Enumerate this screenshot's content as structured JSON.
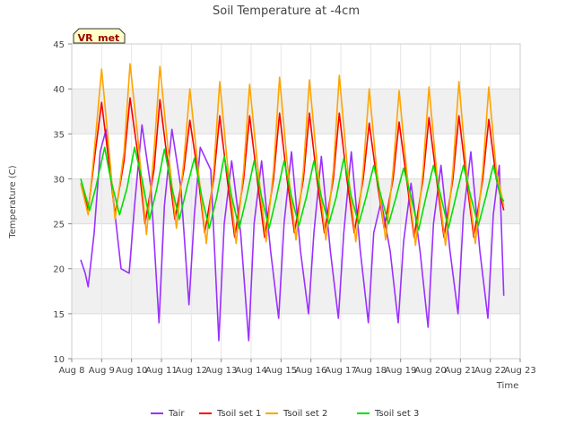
{
  "chart_data": {
    "type": "line",
    "title": "Soil Temperature at -4cm",
    "xlabel": "Time",
    "ylabel": "Temperature (C)",
    "station_label": "VR_met",
    "ylim": [
      10,
      45
    ],
    "yticks": [
      10,
      15,
      20,
      25,
      30,
      35,
      40,
      45
    ],
    "xlim_days": [
      8,
      23
    ],
    "xtick_labels": [
      "Aug 8",
      "Aug 9",
      "Aug 10",
      "Aug 11",
      "Aug 12",
      "Aug 13",
      "Aug 14",
      "Aug 15",
      "Aug 16",
      "Aug 17",
      "Aug 18",
      "Aug 19",
      "Aug 20",
      "Aug 21",
      "Aug 22",
      "Aug 23"
    ],
    "grid": true,
    "legend_position": "bottom",
    "series": [
      {
        "name": "Tair",
        "color": "#9b30ff",
        "x": [
          8.3,
          8.45,
          8.55,
          8.75,
          8.95,
          9.15,
          9.35,
          9.65,
          9.92,
          10.1,
          10.35,
          10.65,
          10.92,
          11.1,
          11.35,
          11.65,
          11.92,
          12.1,
          12.3,
          12.65,
          12.92,
          13.1,
          13.35,
          13.65,
          13.92,
          14.1,
          14.35,
          14.65,
          14.92,
          15.1,
          15.35,
          15.65,
          15.92,
          16.1,
          16.35,
          16.65,
          16.92,
          17.1,
          17.35,
          17.65,
          17.92,
          18.1,
          18.35,
          18.65,
          18.92,
          19.1,
          19.35,
          19.65,
          19.92,
          20.1,
          20.35,
          20.65,
          20.92,
          21.1,
          21.35,
          21.65,
          21.92,
          22.1,
          22.3,
          22.45
        ],
        "y": [
          21,
          19.5,
          18,
          24,
          33,
          35.5,
          29,
          20,
          19.5,
          27,
          36,
          29,
          14,
          27,
          35.5,
          29,
          16,
          26,
          33.5,
          31,
          12,
          25,
          32,
          24,
          12,
          25,
          32,
          22,
          14.5,
          25,
          33,
          22,
          15,
          24,
          32.5,
          22,
          14.5,
          24,
          33,
          22,
          14,
          24,
          27.5,
          22,
          14,
          23,
          29.5,
          22,
          13.5,
          25,
          31.5,
          22,
          15,
          26,
          33,
          22,
          14.5,
          26,
          31.5,
          17
        ]
      },
      {
        "name": "Tsoil set 1",
        "color": "#ff0000",
        "x": [
          8.3,
          8.55,
          8.75,
          9.0,
          9.2,
          9.45,
          9.75,
          9.95,
          10.2,
          10.45,
          10.75,
          10.95,
          11.2,
          11.45,
          11.75,
          11.95,
          12.2,
          12.45,
          12.75,
          12.95,
          13.2,
          13.45,
          13.75,
          13.95,
          14.2,
          14.45,
          14.75,
          14.95,
          15.2,
          15.45,
          15.75,
          15.95,
          16.2,
          16.45,
          16.75,
          16.95,
          17.2,
          17.45,
          17.75,
          17.95,
          18.2,
          18.45,
          18.75,
          18.95,
          19.2,
          19.45,
          19.75,
          19.95,
          20.2,
          20.45,
          20.75,
          20.95,
          21.2,
          21.45,
          21.75,
          21.95,
          22.2,
          22.45
        ],
        "y": [
          29.5,
          26.5,
          32,
          38.5,
          33,
          26,
          32,
          39,
          33,
          25,
          31,
          38.8,
          32,
          25.5,
          31,
          36.5,
          31,
          24,
          30,
          37,
          30,
          23.5,
          30,
          37,
          30,
          23.5,
          30,
          37.3,
          30,
          24,
          30,
          37.3,
          30,
          24,
          30,
          37.3,
          30,
          24,
          30,
          36.2,
          30,
          24.5,
          30,
          36.3,
          30,
          23.5,
          30,
          36.8,
          30,
          23.5,
          30,
          37,
          30,
          23.5,
          30,
          36.6,
          30,
          26.5
        ]
      },
      {
        "name": "Tsoil set 2",
        "color": "#ffa500",
        "x": [
          8.3,
          8.55,
          8.75,
          9.0,
          9.2,
          9.45,
          9.75,
          9.95,
          10.2,
          10.5,
          10.75,
          10.95,
          11.2,
          11.5,
          11.75,
          11.95,
          12.2,
          12.5,
          12.75,
          12.95,
          13.2,
          13.5,
          13.75,
          13.95,
          14.2,
          14.5,
          14.75,
          14.95,
          15.2,
          15.5,
          15.75,
          15.95,
          16.2,
          16.5,
          16.75,
          16.95,
          17.2,
          17.5,
          17.75,
          17.95,
          18.2,
          18.5,
          18.75,
          18.95,
          19.2,
          19.5,
          19.75,
          19.95,
          20.2,
          20.5,
          20.75,
          20.95,
          21.2,
          21.5,
          21.75,
          21.95,
          22.2,
          22.45
        ],
        "y": [
          29.5,
          26,
          33,
          42.2,
          35,
          25.5,
          33,
          42.8,
          35,
          23.8,
          33,
          42.5,
          34,
          24.5,
          32,
          40,
          32,
          22.8,
          31,
          40.8,
          32,
          22.8,
          31,
          40.5,
          32,
          23,
          31,
          41.3,
          32,
          23.2,
          31,
          41,
          32,
          23.2,
          31,
          41.5,
          32,
          23,
          31,
          40,
          31,
          23.2,
          31,
          39.8,
          31,
          22.6,
          31,
          40.2,
          31,
          22.6,
          31,
          40.8,
          31,
          22.8,
          31,
          40.2,
          31,
          27
        ]
      },
      {
        "name": "Tsoil set 3",
        "color": "#00e000",
        "x": [
          8.3,
          8.6,
          8.8,
          9.1,
          9.3,
          9.6,
          9.85,
          10.1,
          10.35,
          10.6,
          10.85,
          11.1,
          11.35,
          11.6,
          11.85,
          12.1,
          12.35,
          12.6,
          12.85,
          13.1,
          13.35,
          13.6,
          13.85,
          14.1,
          14.35,
          14.6,
          14.85,
          15.1,
          15.35,
          15.6,
          15.85,
          16.1,
          16.35,
          16.6,
          16.85,
          17.1,
          17.35,
          17.6,
          17.85,
          18.1,
          18.35,
          18.6,
          18.85,
          19.1,
          19.35,
          19.6,
          19.85,
          20.1,
          20.35,
          20.6,
          20.85,
          21.1,
          21.35,
          21.6,
          21.85,
          22.1,
          22.35,
          22.45
        ],
        "y": [
          30,
          26.5,
          29,
          33.5,
          30,
          26,
          29,
          33.5,
          30,
          25.5,
          29,
          33.3,
          29,
          25.5,
          29,
          32.3,
          28,
          24.5,
          28,
          32.5,
          28,
          24.5,
          28,
          32,
          28,
          24.5,
          28,
          32,
          28,
          24.8,
          28,
          32,
          28,
          25,
          28,
          32.3,
          28,
          25,
          28,
          31.5,
          28,
          25,
          28,
          31.2,
          28,
          24.3,
          28,
          31.5,
          28,
          24.5,
          28,
          31.5,
          28,
          24.8,
          28,
          31.5,
          28,
          27.5
        ]
      }
    ]
  }
}
